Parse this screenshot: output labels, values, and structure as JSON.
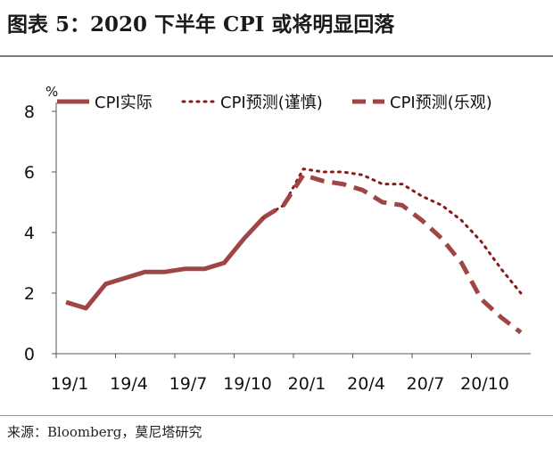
{
  "figure": {
    "title": "图表 5：2020 下半年 CPI 或将明显回落",
    "source": "来源：Bloomberg，莫尼塔研究"
  },
  "chart_data": {
    "type": "line",
    "yunit": "%",
    "ylim": [
      0,
      8
    ],
    "yticks": [
      0,
      2,
      4,
      6,
      8
    ],
    "x": [
      "19/1",
      "19/2",
      "19/3",
      "19/4",
      "19/5",
      "19/6",
      "19/7",
      "19/8",
      "19/9",
      "19/10",
      "19/11",
      "19/12",
      "20/1",
      "20/2",
      "20/3",
      "20/4",
      "20/5",
      "20/6",
      "20/7",
      "20/8",
      "20/9",
      "20/10",
      "20/11",
      "20/12"
    ],
    "xtick_labels": [
      "19/1",
      "19/4",
      "19/7",
      "19/10",
      "20/1",
      "20/4",
      "20/7",
      "20/10"
    ],
    "legend_position": "top",
    "grid": false,
    "series": [
      {
        "name": "CPI实际",
        "style": "solid",
        "color": "#a04545",
        "x": [
          "19/1",
          "19/2",
          "19/3",
          "19/4",
          "19/5",
          "19/6",
          "19/7",
          "19/8",
          "19/9",
          "19/10",
          "19/11"
        ],
        "values": [
          1.7,
          1.5,
          2.3,
          2.5,
          2.7,
          2.7,
          2.8,
          2.8,
          3.0,
          3.8,
          4.5
        ]
      },
      {
        "name": "CPI预测(谨慎)",
        "style": "dotted",
        "color": "#8b1a1a",
        "x": [
          "19/11",
          "19/12",
          "20/1",
          "20/2",
          "20/3",
          "20/4",
          "20/5",
          "20/6",
          "20/7",
          "20/8",
          "20/9",
          "20/10",
          "20/11",
          "20/12"
        ],
        "values": [
          4.5,
          4.9,
          6.1,
          6.0,
          6.0,
          5.9,
          5.6,
          5.6,
          5.2,
          4.9,
          4.4,
          3.7,
          2.8,
          2.0
        ]
      },
      {
        "name": "CPI预测(乐观)",
        "style": "dashed",
        "color": "#a04545",
        "x": [
          "19/11",
          "19/12",
          "20/1",
          "20/2",
          "20/3",
          "20/4",
          "20/5",
          "20/6",
          "20/7",
          "20/8",
          "20/9",
          "20/10",
          "20/11",
          "20/12"
        ],
        "values": [
          4.5,
          4.9,
          5.9,
          5.7,
          5.6,
          5.4,
          5.0,
          4.9,
          4.4,
          3.8,
          3.0,
          1.8,
          1.2,
          0.7
        ]
      }
    ]
  }
}
